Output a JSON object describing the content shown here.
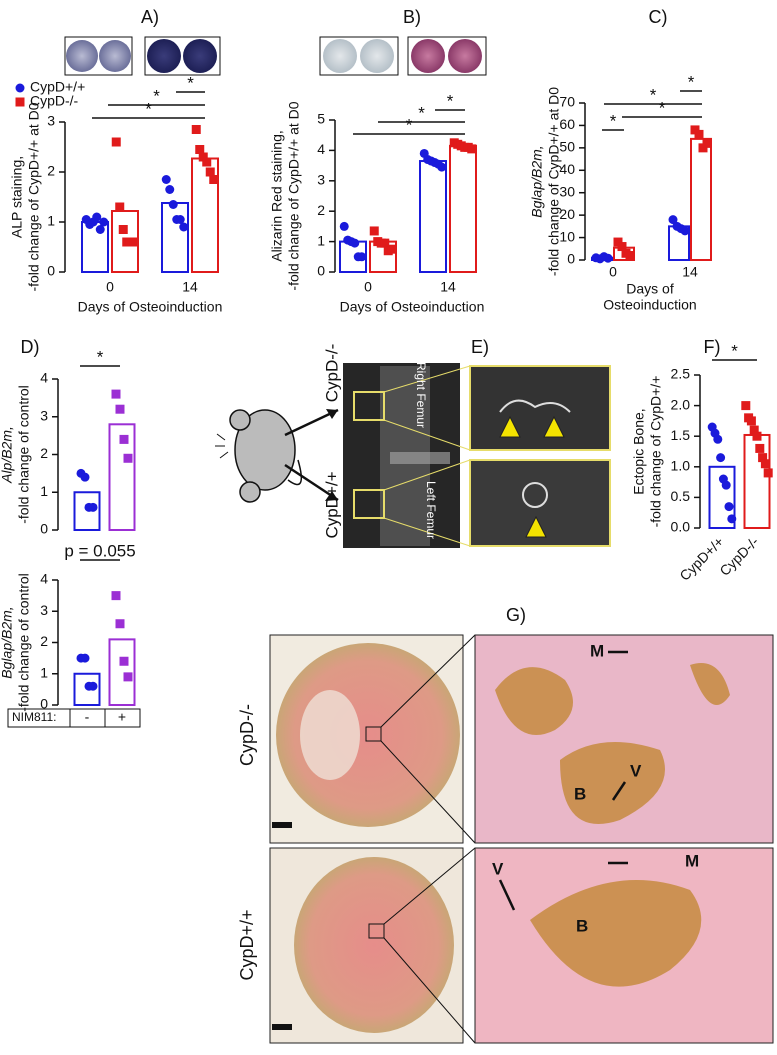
{
  "chart_data": [
    {
      "type": "bar",
      "title": "A)",
      "ylabel": [
        "ALP staining,",
        "-fold change of CypD+/+ at D0"
      ],
      "xlabel": [
        "Days of Osteoinduction"
      ],
      "categories": [
        "0",
        "14"
      ],
      "ylim": [
        0,
        3
      ],
      "yticks": [
        0,
        1,
        2,
        3
      ],
      "annotations": [
        "*",
        "*",
        "*"
      ],
      "series": [
        {
          "name": "CypD+/+",
          "color": "#1a1adb",
          "marker": "circle",
          "values": [
            1.0,
            1.38
          ],
          "points": [
            [
              1.05,
              0.95,
              1.0,
              1.1,
              0.85,
              1.0
            ],
            [
              1.85,
              1.65,
              1.35,
              1.05,
              1.05,
              0.9
            ]
          ]
        },
        {
          "name": "CypD-/-",
          "color": "#e01b1b",
          "marker": "square",
          "values": [
            1.22,
            2.27
          ],
          "points": [
            [
              2.6,
              1.3,
              0.85,
              0.6,
              0.6,
              0.6
            ],
            [
              2.85,
              2.45,
              2.3,
              2.2,
              2.0,
              1.85
            ]
          ]
        }
      ]
    },
    {
      "type": "bar",
      "title": "B)",
      "ylabel": [
        "Alizarin Red staining,",
        "-fold change of CypD+/+ at D0"
      ],
      "xlabel": [
        "Days of Osteoinduction"
      ],
      "categories": [
        "0",
        "14"
      ],
      "ylim": [
        0,
        5
      ],
      "yticks": [
        0,
        1,
        2,
        3,
        4,
        5
      ],
      "annotations": [
        "*",
        "*",
        "*"
      ],
      "series": [
        {
          "color": "#1a1adb",
          "marker": "circle",
          "values": [
            1.0,
            3.65
          ],
          "points": [
            [
              1.5,
              1.05,
              1.0,
              0.95,
              0.5,
              0.5
            ],
            [
              3.9,
              3.7,
              3.65,
              3.6,
              3.55,
              3.45
            ]
          ]
        },
        {
          "color": "#e01b1b",
          "marker": "square",
          "values": [
            1.0,
            4.15
          ],
          "points": [
            [
              1.35,
              1.0,
              0.95,
              0.95,
              0.7,
              0.75
            ],
            [
              4.25,
              4.2,
              4.15,
              4.1,
              4.1,
              4.05
            ]
          ]
        }
      ]
    },
    {
      "type": "bar",
      "title": "C)",
      "ylabel": [
        "Bglap/B2m,",
        "-fold change of CypD+/+ at D0"
      ],
      "xlabel": [
        "Days of",
        "Osteoinduction"
      ],
      "categories": [
        "0",
        "14"
      ],
      "ylim": [
        0,
        70
      ],
      "yticks": [
        0,
        10,
        20,
        30,
        40,
        50,
        60,
        70
      ],
      "annotations": [
        "*",
        "*",
        "*",
        "*"
      ],
      "series": [
        {
          "color": "#1a1adb",
          "marker": "circle",
          "values": [
            1.0,
            15
          ],
          "points": [
            [
              1.0,
              0.5,
              1.5,
              0.8
            ],
            [
              18,
              15,
              14,
              13
            ]
          ]
        },
        {
          "color": "#e01b1b",
          "marker": "square",
          "values": [
            5.5,
            54
          ],
          "points": [
            [
              8,
              6,
              3,
              2
            ],
            [
              58,
              56,
              50,
              52
            ]
          ]
        }
      ]
    },
    {
      "type": "bar",
      "title": "D)",
      "ylabel": [
        "Alp/B2m,",
        "-fold change of control"
      ],
      "ylim": [
        0,
        4
      ],
      "yticks": [
        0,
        1,
        2,
        3,
        4
      ],
      "annotations": [
        "*"
      ],
      "values": [
        1.0,
        2.8
      ],
      "colors": [
        "#1a1adb",
        "#9b2fd4"
      ],
      "markers": [
        "circle",
        "square"
      ],
      "points": [
        [
          1.5,
          1.4,
          0.6,
          0.6
        ],
        [
          3.6,
          3.2,
          2.4,
          1.9
        ]
      ]
    },
    {
      "type": "bar",
      "ylabel": [
        "Bglap/B2m,",
        "-fold change of control"
      ],
      "row_label": "NIM811:",
      "categories": [
        "-",
        "+"
      ],
      "ylim": [
        0,
        4
      ],
      "yticks": [
        0,
        1,
        2,
        3,
        4
      ],
      "annotations": [
        "p = 0.055"
      ],
      "values": [
        1.0,
        2.1
      ],
      "colors": [
        "#1a1adb",
        "#9b2fd4"
      ],
      "markers": [
        "circle",
        "square"
      ],
      "points": [
        [
          1.5,
          1.5,
          0.6,
          0.6
        ],
        [
          3.5,
          2.6,
          1.4,
          0.9
        ]
      ]
    },
    {
      "type": "bar",
      "title": "F)",
      "ylabel": [
        "Ectopic Bone,",
        "-fold change of CypD+/+"
      ],
      "categories": [
        "CypD+/+",
        "CypD-/-"
      ],
      "ylim": [
        0,
        2.5
      ],
      "yticks": [
        {
          "value": 0,
          "label": "0.0"
        },
        {
          "value": 0.5,
          "label": "0.5"
        },
        {
          "value": 1,
          "label": "1.0"
        },
        {
          "value": 1.5,
          "label": "1.5"
        },
        {
          "value": 2,
          "label": "2.0"
        },
        {
          "value": 2.5,
          "label": "2.5"
        }
      ],
      "annotations": [
        "*"
      ],
      "values": [
        1.0,
        1.52
      ],
      "colors": [
        "#1a1adb",
        "#e01b1b"
      ],
      "markers": [
        "circle",
        "square"
      ],
      "points": [
        [
          1.65,
          1.55,
          1.45,
          1.15,
          0.8,
          0.7,
          0.35,
          0.15
        ],
        [
          2.0,
          1.8,
          1.75,
          1.6,
          1.5,
          1.3,
          1.15,
          1.05,
          0.9
        ]
      ]
    }
  ],
  "panel_e": {
    "title": "E)",
    "top_label": "CypD-/-",
    "bottom_label": "CypD+/+",
    "right": "Right Femur",
    "left": "Left Femur"
  },
  "panel_g": {
    "title": "G)",
    "top_label": "CypD-/-",
    "bottom_label": "CypD+/+",
    "top_marks": [
      "M",
      "V",
      "B"
    ],
    "bottom_marks": [
      "M",
      "V",
      "B"
    ]
  }
}
